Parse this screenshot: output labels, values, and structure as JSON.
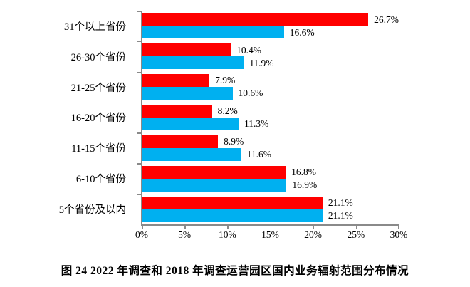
{
  "caption": "图 24 2022 年调查和 2018 年调查运营园区国内业务辐射范围分布情况",
  "chart_data": {
    "type": "bar",
    "orientation": "horizontal",
    "title": "图 24 2022 年调查和 2018 年调查运营园区国内业务辐射范围分布情况",
    "categories": [
      "31个以上省份",
      "26-30个省份",
      "21-25个省份",
      "16-20个省份",
      "11-15个省份",
      "6-10个省份",
      "5个省份及以内"
    ],
    "series": [
      {
        "name": "2022年调查",
        "color": "#FF0000",
        "values": [
          26.7,
          10.4,
          7.9,
          8.2,
          8.9,
          16.8,
          21.1
        ]
      },
      {
        "name": "2018年调查",
        "color": "#00B0F0",
        "values": [
          16.6,
          11.9,
          10.6,
          11.3,
          11.6,
          16.9,
          21.1
        ]
      }
    ],
    "data_labels": [
      "26.7%",
      "16.6%",
      "10.4%",
      "11.9%",
      "7.9%",
      "10.6%",
      "8.2%",
      "11.3%",
      "8.9%",
      "11.6%",
      "16.8%",
      "16.9%",
      "21.1%",
      "21.1%"
    ],
    "value_suffix": "%",
    "xlim": [
      0,
      30
    ],
    "x_tick_labels": [
      "0%",
      "5%",
      "10%",
      "15%",
      "20%",
      "25%",
      "30%"
    ],
    "axis_color": "#8a8a8a",
    "grid": "off",
    "legend": "none"
  }
}
